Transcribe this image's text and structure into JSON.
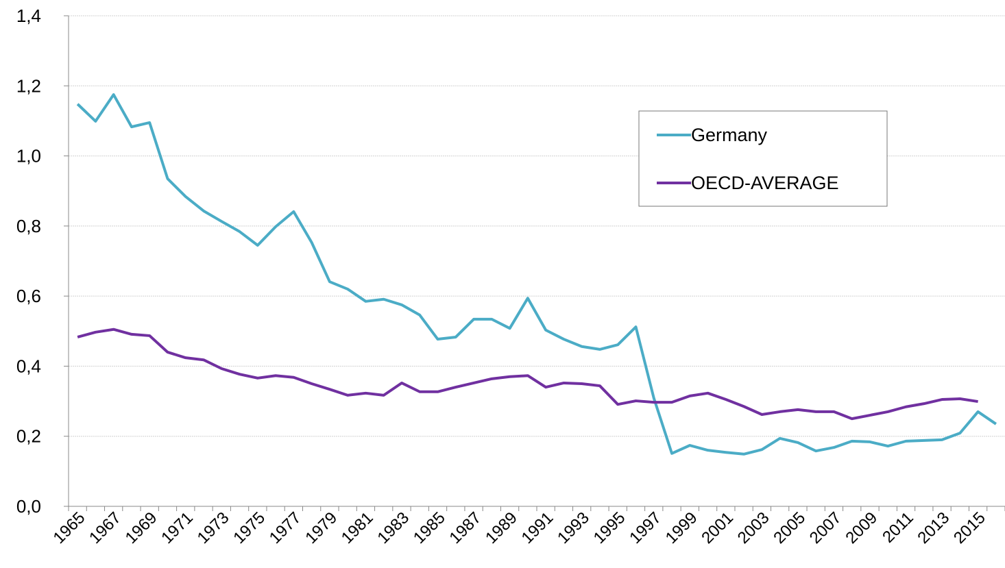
{
  "chart_data": {
    "type": "line",
    "categories": [
      "1965",
      null,
      "1967",
      null,
      "1969",
      null,
      "1971",
      null,
      "1973",
      null,
      "1975",
      null,
      "1977",
      null,
      "1979",
      null,
      "1981",
      null,
      "1983",
      null,
      "1985",
      null,
      "1987",
      null,
      "1989",
      null,
      "1991",
      null,
      "1993",
      null,
      "1995",
      null,
      "1997",
      null,
      "1999",
      null,
      "2001",
      null,
      "2003",
      null,
      "2005",
      null,
      "2007",
      null,
      "2009",
      null,
      "2011",
      null,
      "2013",
      null,
      "2015",
      null
    ],
    "series": [
      {
        "name": "Germany",
        "color": "#4bacc6",
        "values": [
          1.148,
          1.099,
          1.175,
          1.083,
          1.095,
          0.935,
          0.884,
          0.843,
          0.813,
          0.784,
          0.745,
          0.798,
          0.841,
          0.753,
          0.641,
          0.62,
          0.585,
          0.591,
          0.575,
          0.546,
          0.477,
          0.483,
          0.534,
          0.534,
          0.508,
          0.594,
          0.503,
          0.477,
          0.456,
          0.448,
          0.461,
          0.512,
          0.309,
          0.151,
          0.174,
          0.16,
          0.154,
          0.149,
          0.162,
          0.194,
          0.182,
          0.158,
          0.168,
          0.186,
          0.184,
          0.172,
          0.186,
          0.188,
          0.19,
          0.209,
          0.27,
          0.235
        ]
      },
      {
        "name": "OECD-AVERAGE",
        "color": "#7030a0",
        "values": [
          0.483,
          0.497,
          0.505,
          0.491,
          0.487,
          0.44,
          0.424,
          0.418,
          0.393,
          0.377,
          0.366,
          0.373,
          0.368,
          0.35,
          0.334,
          0.317,
          0.323,
          0.317,
          0.352,
          0.327,
          0.327,
          0.34,
          0.352,
          0.364,
          0.37,
          0.373,
          0.34,
          0.352,
          0.35,
          0.344,
          0.291,
          0.301,
          0.297,
          0.297,
          0.315,
          0.323,
          0.305,
          0.285,
          0.262,
          0.27,
          0.276,
          0.27,
          0.27,
          0.25,
          0.26,
          0.27,
          0.284,
          0.293,
          0.305,
          0.307,
          0.299,
          null
        ]
      }
    ],
    "ylim": [
      0,
      1.4
    ],
    "yticks": [
      {
        "value": 0,
        "label": "0,0"
      },
      {
        "value": 0.2,
        "label": "0,2"
      },
      {
        "value": 0.4,
        "label": "0,4"
      },
      {
        "value": 0.6,
        "label": "0,6"
      },
      {
        "value": 0.8,
        "label": "0,8"
      },
      {
        "value": 1.0,
        "label": "1,0"
      },
      {
        "value": 1.2,
        "label": "1,2"
      },
      {
        "value": 1.4,
        "label": "1,4"
      }
    ],
    "grid": true,
    "legend_position": "upper right"
  }
}
